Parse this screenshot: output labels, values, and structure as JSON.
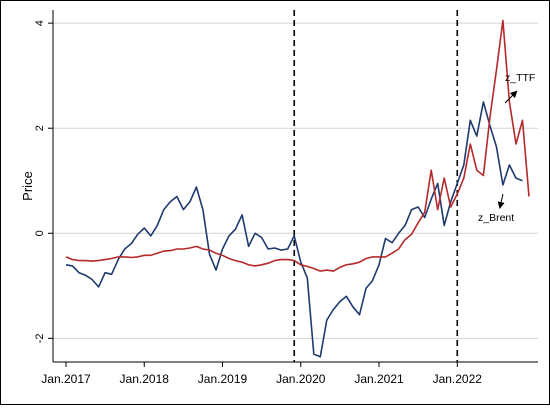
{
  "chart_data": {
    "type": "line",
    "title": "",
    "xlabel": "",
    "ylabel": "Price",
    "x_ticks": [
      "Jan.2017",
      "Jan.2018",
      "Jan.2019",
      "Jan.2020",
      "Jan.2021",
      "Jan.2022"
    ],
    "y_ticks": [
      "-2",
      "0",
      "2",
      "4"
    ],
    "ylim": [
      -2.45,
      4.25
    ],
    "xlim": [
      "2016-12",
      "2022-12"
    ],
    "grid": "horizontal",
    "vertical_markers": [
      "2019-12",
      "2022-01"
    ],
    "annotations": [
      "z_TTF",
      "z_Brent"
    ],
    "series": [
      {
        "name": "z_Brent",
        "color": "#1f3a6e",
        "points": [
          [
            "2017-01",
            -0.6
          ],
          [
            "2017-02",
            -0.62
          ],
          [
            "2017-03",
            -0.75
          ],
          [
            "2017-04",
            -0.8
          ],
          [
            "2017-05",
            -0.88
          ],
          [
            "2017-06",
            -1.02
          ],
          [
            "2017-07",
            -0.75
          ],
          [
            "2017-08",
            -0.78
          ],
          [
            "2017-09",
            -0.5
          ],
          [
            "2017-10",
            -0.3
          ],
          [
            "2017-11",
            -0.2
          ],
          [
            "2017-12",
            -0.02
          ],
          [
            "2018-01",
            0.1
          ],
          [
            "2018-02",
            -0.05
          ],
          [
            "2018-03",
            0.15
          ],
          [
            "2018-04",
            0.45
          ],
          [
            "2018-05",
            0.6
          ],
          [
            "2018-06",
            0.7
          ],
          [
            "2018-07",
            0.45
          ],
          [
            "2018-08",
            0.6
          ],
          [
            "2018-09",
            0.88
          ],
          [
            "2018-10",
            0.45
          ],
          [
            "2018-11",
            -0.4
          ],
          [
            "2018-12",
            -0.7
          ],
          [
            "2019-01",
            -0.3
          ],
          [
            "2019-02",
            -0.05
          ],
          [
            "2019-03",
            0.08
          ],
          [
            "2019-04",
            0.35
          ],
          [
            "2019-05",
            -0.25
          ],
          [
            "2019-06",
            0.0
          ],
          [
            "2019-07",
            -0.08
          ],
          [
            "2019-08",
            -0.3
          ],
          [
            "2019-09",
            -0.28
          ],
          [
            "2019-10",
            -0.32
          ],
          [
            "2019-11",
            -0.3
          ],
          [
            "2019-12",
            -0.05
          ],
          [
            "2020-01",
            -0.55
          ],
          [
            "2020-02",
            -0.85
          ],
          [
            "2020-03",
            -2.3
          ],
          [
            "2020-04",
            -2.35
          ],
          [
            "2020-05",
            -1.65
          ],
          [
            "2020-06",
            -1.45
          ],
          [
            "2020-07",
            -1.3
          ],
          [
            "2020-08",
            -1.2
          ],
          [
            "2020-09",
            -1.4
          ],
          [
            "2020-10",
            -1.55
          ],
          [
            "2020-11",
            -1.05
          ],
          [
            "2020-12",
            -0.9
          ],
          [
            "2021-01",
            -0.6
          ],
          [
            "2021-02",
            -0.1
          ],
          [
            "2021-03",
            -0.18
          ],
          [
            "2021-04",
            0.0
          ],
          [
            "2021-05",
            0.15
          ],
          [
            "2021-06",
            0.45
          ],
          [
            "2021-07",
            0.5
          ],
          [
            "2021-08",
            0.3
          ],
          [
            "2021-09",
            0.65
          ],
          [
            "2021-10",
            0.95
          ],
          [
            "2021-11",
            0.15
          ],
          [
            "2021-12",
            0.6
          ],
          [
            "2022-01",
            0.95
          ],
          [
            "2022-02",
            1.3
          ],
          [
            "2022-03",
            2.15
          ],
          [
            "2022-04",
            1.85
          ],
          [
            "2022-05",
            2.5
          ],
          [
            "2022-06",
            2.05
          ],
          [
            "2022-07",
            1.65
          ],
          [
            "2022-08",
            0.92
          ],
          [
            "2022-09",
            1.3
          ],
          [
            "2022-10",
            1.05
          ],
          [
            "2022-11",
            1.0
          ]
        ]
      },
      {
        "name": "z_TTF",
        "color": "#b52a2a",
        "points": [
          [
            "2017-01",
            -0.45
          ],
          [
            "2017-02",
            -0.5
          ],
          [
            "2017-03",
            -0.52
          ],
          [
            "2017-04",
            -0.52
          ],
          [
            "2017-05",
            -0.53
          ],
          [
            "2017-06",
            -0.52
          ],
          [
            "2017-07",
            -0.5
          ],
          [
            "2017-08",
            -0.48
          ],
          [
            "2017-09",
            -0.45
          ],
          [
            "2017-10",
            -0.45
          ],
          [
            "2017-11",
            -0.46
          ],
          [
            "2017-12",
            -0.45
          ],
          [
            "2018-01",
            -0.42
          ],
          [
            "2018-02",
            -0.42
          ],
          [
            "2018-03",
            -0.38
          ],
          [
            "2018-04",
            -0.34
          ],
          [
            "2018-05",
            -0.33
          ],
          [
            "2018-06",
            -0.3
          ],
          [
            "2018-07",
            -0.3
          ],
          [
            "2018-08",
            -0.28
          ],
          [
            "2018-09",
            -0.25
          ],
          [
            "2018-10",
            -0.3
          ],
          [
            "2018-11",
            -0.32
          ],
          [
            "2018-12",
            -0.38
          ],
          [
            "2019-01",
            -0.42
          ],
          [
            "2019-02",
            -0.48
          ],
          [
            "2019-03",
            -0.52
          ],
          [
            "2019-04",
            -0.55
          ],
          [
            "2019-05",
            -0.6
          ],
          [
            "2019-06",
            -0.62
          ],
          [
            "2019-07",
            -0.6
          ],
          [
            "2019-08",
            -0.57
          ],
          [
            "2019-09",
            -0.52
          ],
          [
            "2019-10",
            -0.5
          ],
          [
            "2019-11",
            -0.5
          ],
          [
            "2019-12",
            -0.52
          ],
          [
            "2020-01",
            -0.6
          ],
          [
            "2020-02",
            -0.63
          ],
          [
            "2020-03",
            -0.67
          ],
          [
            "2020-04",
            -0.72
          ],
          [
            "2020-05",
            -0.7
          ],
          [
            "2020-06",
            -0.72
          ],
          [
            "2020-07",
            -0.65
          ],
          [
            "2020-08",
            -0.6
          ],
          [
            "2020-09",
            -0.58
          ],
          [
            "2020-10",
            -0.55
          ],
          [
            "2020-11",
            -0.48
          ],
          [
            "2020-12",
            -0.45
          ],
          [
            "2021-01",
            -0.45
          ],
          [
            "2021-02",
            -0.45
          ],
          [
            "2021-03",
            -0.38
          ],
          [
            "2021-04",
            -0.3
          ],
          [
            "2021-05",
            -0.12
          ],
          [
            "2021-06",
            -0.02
          ],
          [
            "2021-07",
            0.2
          ],
          [
            "2021-08",
            0.4
          ],
          [
            "2021-09",
            1.2
          ],
          [
            "2021-10",
            0.45
          ],
          [
            "2021-11",
            1.05
          ],
          [
            "2021-12",
            0.5
          ],
          [
            "2022-01",
            0.75
          ],
          [
            "2022-02",
            1.05
          ],
          [
            "2022-03",
            1.7
          ],
          [
            "2022-04",
            1.2
          ],
          [
            "2022-05",
            1.1
          ],
          [
            "2022-06",
            2.2
          ],
          [
            "2022-07",
            3.1
          ],
          [
            "2022-08",
            4.05
          ],
          [
            "2022-09",
            2.5
          ],
          [
            "2022-10",
            1.7
          ],
          [
            "2022-11",
            2.15
          ],
          [
            "2022-12",
            0.7
          ]
        ]
      }
    ]
  }
}
